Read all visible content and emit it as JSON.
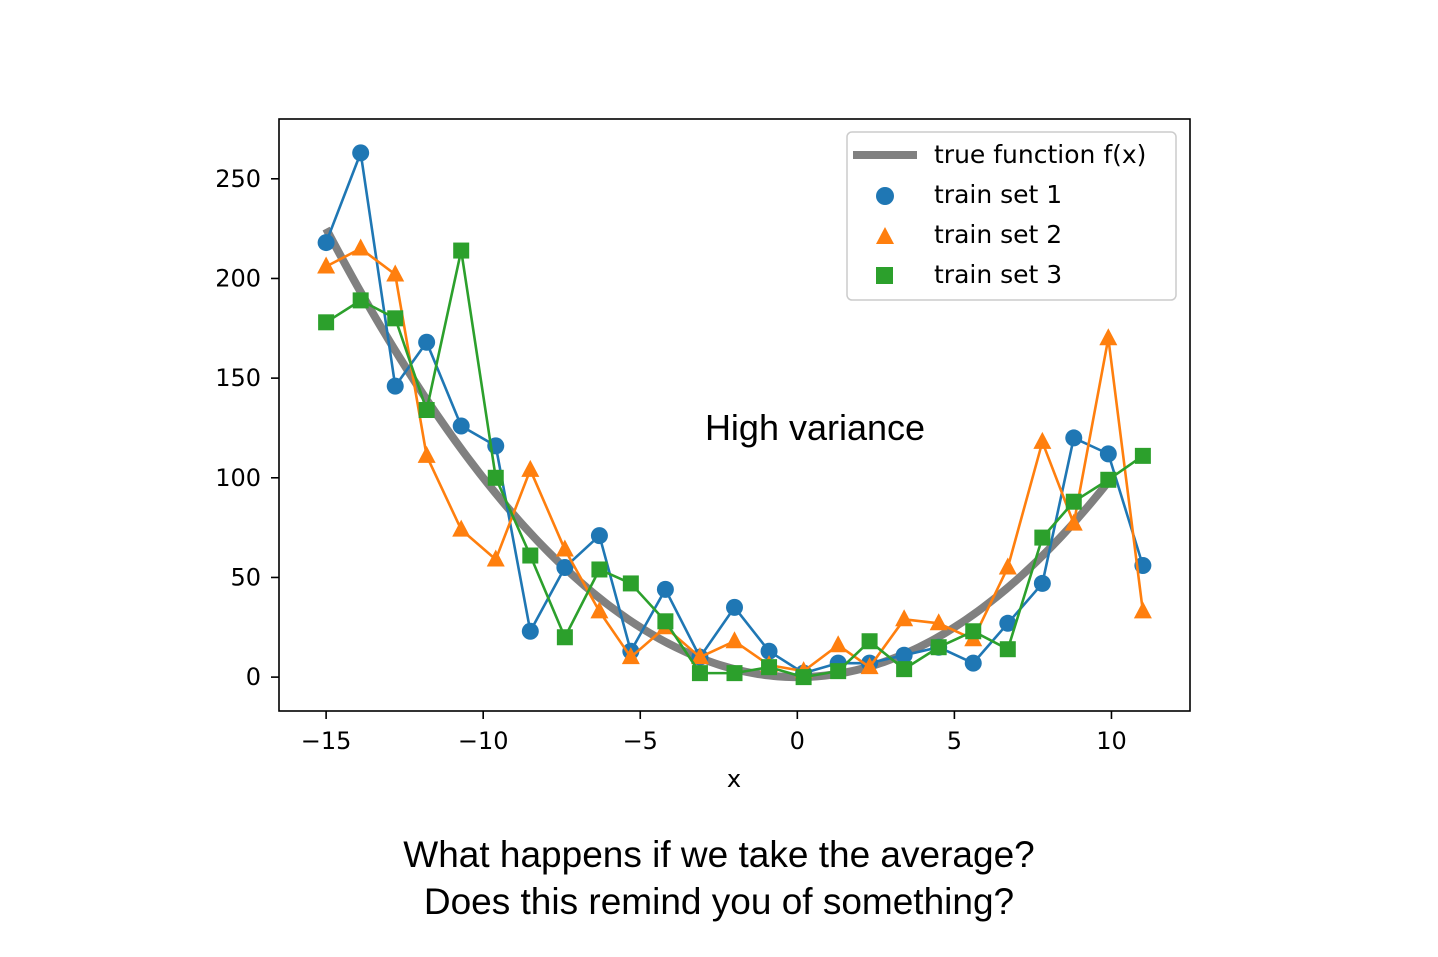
{
  "chart_data": {
    "type": "line",
    "title": "",
    "xlabel": "x",
    "ylabel": "",
    "xlim": [
      -16.5,
      12.5
    ],
    "ylim": [
      -17,
      280
    ],
    "xticks": [
      -15,
      -10,
      -5,
      0,
      5,
      10
    ],
    "xtick_labels": [
      "−15",
      "−10",
      "−5",
      "0",
      "5",
      "10"
    ],
    "yticks": [
      0,
      50,
      100,
      150,
      200,
      250
    ],
    "ytick_labels": [
      "0",
      "50",
      "100",
      "150",
      "200",
      "250"
    ],
    "grid": false,
    "legend_position": "top-right",
    "annotation": "High variance",
    "true_function": {
      "name": "true function f(x)",
      "color": "#808080",
      "x_range": [
        -15,
        10
      ],
      "expression": "x^2"
    },
    "x": [
      -15,
      -13.9,
      -12.8,
      -11.8,
      -10.7,
      -9.6,
      -8.5,
      -7.4,
      -6.3,
      -5.3,
      -4.2,
      -3.1,
      -2.0,
      -0.9,
      0.2,
      1.3,
      2.3,
      3.4,
      4.5,
      5.6,
      6.7,
      7.8,
      8.8,
      9.9,
      11.0
    ],
    "series": [
      {
        "name": "train set 1",
        "color": "#1f77b4",
        "marker": "circle",
        "values": [
          218,
          263,
          146,
          168,
          126,
          116,
          23,
          55,
          71,
          13,
          44,
          10,
          35,
          13,
          2,
          7,
          7,
          11,
          15,
          7,
          27,
          47,
          120,
          112,
          56
        ]
      },
      {
        "name": "train set 2",
        "color": "#ff7f0e",
        "marker": "triangle",
        "values": [
          206,
          215,
          202,
          111,
          74,
          59,
          104,
          64,
          33,
          10,
          25,
          10,
          18,
          6,
          3,
          16,
          5,
          29,
          27,
          19,
          55,
          118,
          77,
          170,
          33
        ]
      },
      {
        "name": "train set 3",
        "color": "#2ca02c",
        "marker": "square",
        "values": [
          178,
          189,
          180,
          134,
          214,
          100,
          61,
          20,
          54,
          47,
          28,
          2,
          2,
          5,
          0,
          3,
          18,
          4,
          15,
          23,
          14,
          70,
          88,
          99,
          111
        ]
      }
    ]
  },
  "caption": {
    "line1": "What happens if we take the average?",
    "line2": "Does this remind you of something?"
  }
}
